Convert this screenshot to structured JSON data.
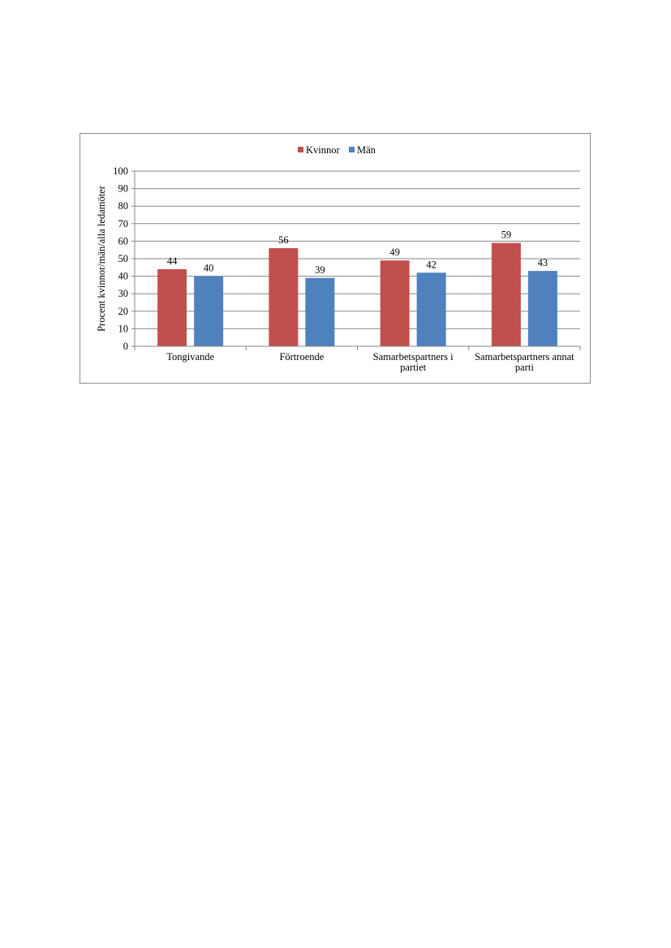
{
  "colors": {
    "Kvinnor": "#c0504d",
    "Män": "#4f81bd",
    "grid": "#878787",
    "axis": "#878787"
  },
  "chart_data": {
    "type": "bar",
    "categories": [
      [
        "Tongivande"
      ],
      [
        "Förtroende"
      ],
      [
        "Samarbetspartners i",
        "partiet"
      ],
      [
        "Samarbetspartners annat",
        "parti"
      ]
    ],
    "series": [
      {
        "name": "Kvinnor",
        "values": [
          44,
          56,
          49,
          59
        ]
      },
      {
        "name": "Män",
        "values": [
          40,
          39,
          42,
          43
        ]
      }
    ],
    "ylabel": "Procent kvinnor/män/alla ledamöter",
    "ylim": [
      0,
      100
    ],
    "yticks": [
      0,
      10,
      20,
      30,
      40,
      50,
      60,
      70,
      80,
      90,
      100
    ],
    "grid": true,
    "legend": "top-center",
    "data_labels": true
  }
}
